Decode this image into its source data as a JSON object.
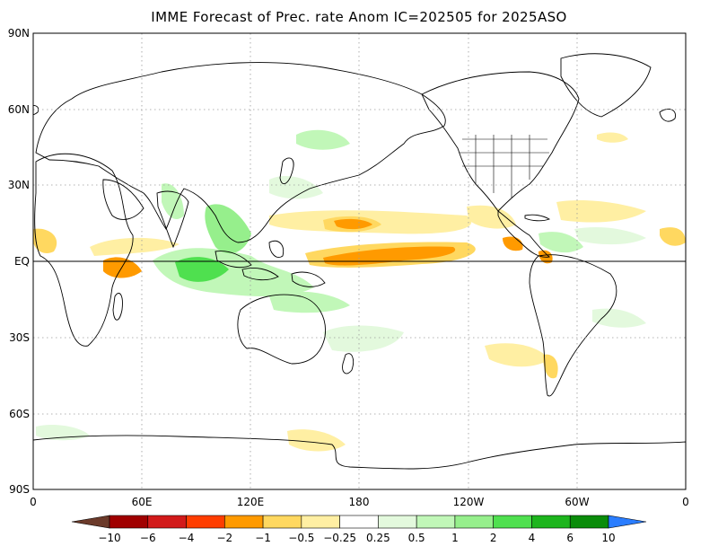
{
  "title": "IMME Forecast of Prec. rate Anom IC=202505 for 2025ASO",
  "lat_labels": [
    "90N",
    "60N",
    "30N",
    "EQ",
    "30S",
    "60S",
    "90S"
  ],
  "lon_labels": [
    "0",
    "60E",
    "120E",
    "180",
    "120W",
    "60W",
    "0"
  ],
  "colorbar": {
    "colors": [
      "#6b3a2a",
      "#a00000",
      "#d21a1a",
      "#ff3d00",
      "#ff9a00",
      "#ffd860",
      "#ffefa3",
      "#ffffff",
      "#e3f9dd",
      "#c1f7b8",
      "#96ef8c",
      "#4fe04f",
      "#1db51d",
      "#0a8c0a",
      "#2a7dff"
    ],
    "labels": [
      "-10",
      "-6",
      "-4",
      "-2",
      "-1",
      "-0.5",
      "-0.25",
      "0.25",
      "0.5",
      "1",
      "2",
      "4",
      "6",
      "10"
    ]
  }
}
